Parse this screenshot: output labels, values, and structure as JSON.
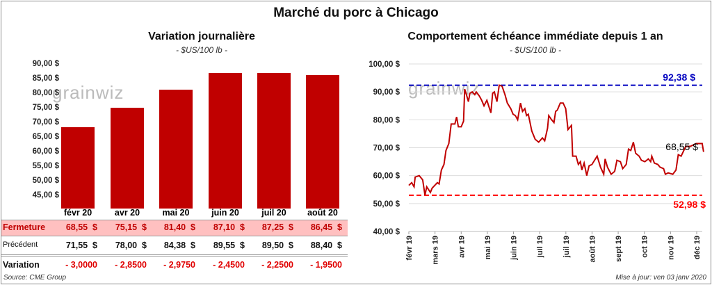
{
  "title": "Marché du porc à Chicago",
  "source": "Source: CME Group",
  "updated": "Mise à jour: ven 03 janv 2020",
  "watermark": "grainwiz",
  "colors": {
    "bar": "#c00000",
    "line": "#c00000",
    "high": "#0000c0",
    "low": "#ff0000",
    "row_highlight": "#ffc0c0"
  },
  "chart_data": [
    {
      "type": "bar",
      "title": "Variation journalière",
      "subtitle": "- $US/100 lb -",
      "categories": [
        "févr 20",
        "avr 20",
        "mai 20",
        "juin 20",
        "juil 20",
        "août 20"
      ],
      "values": [
        68.55,
        75.15,
        81.4,
        87.1,
        87.25,
        86.45
      ],
      "ylim": [
        45,
        90
      ],
      "yticks": [
        "45,00 $",
        "50,00 $",
        "55,00 $",
        "60,00 $",
        "65,00 $",
        "70,00 $",
        "75,00 $",
        "80,00 $",
        "85,00 $",
        "90,00 $"
      ],
      "table": {
        "rows": [
          {
            "label": "Fermeture",
            "values": [
              "68,55  $",
              "75,15  $",
              "81,40  $",
              "87,10  $",
              "87,25  $",
              "86,45  $"
            ]
          },
          {
            "label": "Précédent",
            "values": [
              "71,55  $",
              "78,00  $",
              "84,38  $",
              "89,55  $",
              "89,50  $",
              "88,40  $"
            ]
          },
          {
            "label": "Variation",
            "values": [
              "- 3,0000",
              "- 2,8500",
              "- 2,9750",
              "- 2,4500",
              "- 2,2500",
              "- 1,9500"
            ]
          }
        ]
      }
    },
    {
      "type": "line",
      "title": "Comportement  échéance immédiate depuis 1 an",
      "subtitle": "- $US/100 lb -",
      "ylim": [
        40,
        100
      ],
      "yticks": [
        "40,00 $",
        "50,00 $",
        "60,00 $",
        "70,00 $",
        "80,00 $",
        "90,00 $",
        "100,00 $"
      ],
      "xticks": [
        "févr 19",
        "mars 19",
        "avr 19",
        "mai 19",
        "juin 19",
        "juil 19",
        "juil 19",
        "août 19",
        "sept 19",
        "oct 19",
        "nov 19",
        "déc 19"
      ],
      "x_unit": "months since févr 19",
      "x": [
        0,
        0.1,
        0.18,
        0.22,
        0.36,
        0.48,
        0.56,
        0.62,
        0.75,
        0.81,
        0.99,
        1.05,
        1.13,
        1.22,
        1.29,
        1.39,
        1.47,
        1.6,
        1.66,
        1.72,
        1.82,
        1.9,
        1.94,
        2.0,
        2.07,
        2.12,
        2.2,
        2.29,
        2.34,
        2.45,
        2.53,
        2.61,
        2.71,
        2.85,
        2.91,
        2.97,
        3.06,
        3.14,
        3.24,
        3.34,
        3.42,
        3.54,
        3.62,
        3.7,
        3.78,
        3.88,
        3.95,
        4.03,
        4.09,
        4.15,
        4.27,
        4.39,
        4.51,
        4.64,
        4.72,
        4.82,
        4.86,
        4.96,
        5.04,
        5.1,
        5.16,
        5.26,
        5.36,
        5.45,
        5.53,
        5.65,
        5.69,
        5.81,
        5.89,
        5.96,
        6.01,
        6.09,
        6.18,
        6.26,
        6.36,
        6.54,
        6.66,
        6.77,
        6.82,
        6.9,
        7.03,
        7.15,
        7.23,
        7.35,
        7.43,
        7.55,
        7.63,
        7.71,
        7.8,
        7.88,
        8.0,
        8.08,
        8.2,
        8.32,
        8.4,
        8.44,
        8.53,
        8.65,
        8.73,
        8.85,
        8.91,
        9.01,
        9.17,
        9.28,
        9.36,
        9.46,
        9.62,
        9.78,
        9.98,
        10.19,
        10.24
      ],
      "y": [
        56.5,
        57.5,
        56,
        59.5,
        60,
        58.5,
        53,
        56,
        54,
        55.5,
        57.5,
        57,
        62,
        64,
        69,
        71.5,
        78.5,
        78.5,
        81,
        77.5,
        77.5,
        79.5,
        91,
        89,
        86.5,
        89.5,
        90,
        89,
        90,
        88.5,
        87,
        85,
        87,
        82.5,
        89.5,
        90,
        86.5,
        92.4,
        92,
        89,
        86,
        84,
        82,
        81.5,
        80,
        86,
        83,
        84,
        81.5,
        82,
        76,
        73,
        72,
        73.5,
        72.5,
        77,
        81.5,
        80,
        79,
        83,
        83.5,
        86,
        86,
        84,
        76.5,
        78,
        67,
        67,
        64,
        65,
        62,
        64.5,
        60,
        63.5,
        64,
        67,
        63,
        60.5,
        66,
        63,
        60.5,
        61.5,
        65.5,
        65,
        62.5,
        64,
        69.5,
        69,
        72,
        68,
        67,
        65.5,
        65,
        66,
        65,
        67,
        64.5,
        64,
        63,
        62.5,
        60.5,
        61,
        60.5,
        62,
        67.5,
        67,
        70.5,
        70.5,
        71.5,
        71.5,
        68.5
      ],
      "high": {
        "value": 92.38,
        "label": "92,38 $"
      },
      "low": {
        "value": 52.98,
        "label": "52,98 $"
      },
      "last": {
        "value": 68.55,
        "label": "68,55 $"
      }
    }
  ]
}
